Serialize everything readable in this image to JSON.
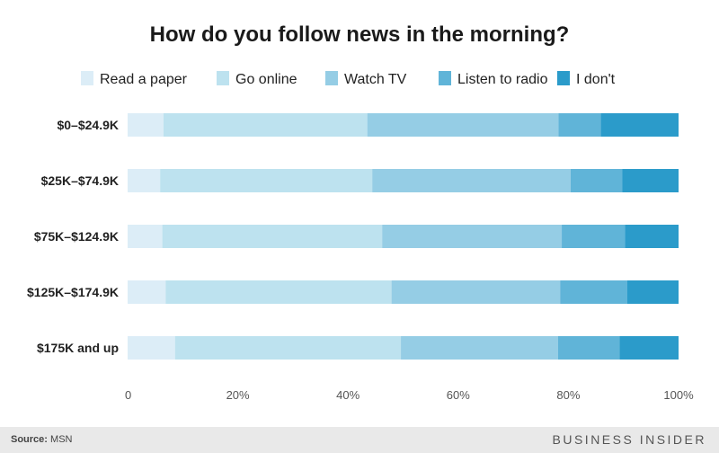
{
  "chart_data": {
    "type": "bar",
    "orientation": "horizontal",
    "stacked": true,
    "title": "How do you follow news in the morning?",
    "categories": [
      "$0–$24.9K",
      "$25K–$74.9K",
      "$75K–$124.9K",
      "$125K–$174.9K",
      "$175K and up"
    ],
    "series": [
      {
        "name": "Read a paper",
        "color": "#dcedf7",
        "values": [
          6.5,
          5.9,
          6.3,
          6.9,
          8.6
        ]
      },
      {
        "name": "Go online",
        "color": "#bde2ef",
        "values": [
          37.0,
          38.5,
          39.9,
          41.0,
          41.0
        ]
      },
      {
        "name": "Watch TV",
        "color": "#95cde5",
        "values": [
          34.7,
          36.0,
          32.6,
          30.6,
          28.5
        ]
      },
      {
        "name": "Listen to radio",
        "color": "#60b4d8",
        "values": [
          7.7,
          9.4,
          11.5,
          12.2,
          11.2
        ]
      },
      {
        "name": "I don't",
        "color": "#2b9bca",
        "values": [
          14.1,
          10.2,
          9.7,
          9.3,
          10.7
        ]
      }
    ],
    "xlim": [
      0,
      100
    ],
    "xticks": [
      "0",
      "20%",
      "40%",
      "60%",
      "80%",
      "100%"
    ],
    "legend_position": "top"
  },
  "footer": {
    "source_label": "Source:",
    "source_value": "MSN",
    "brand": "BUSINESS INSIDER"
  }
}
